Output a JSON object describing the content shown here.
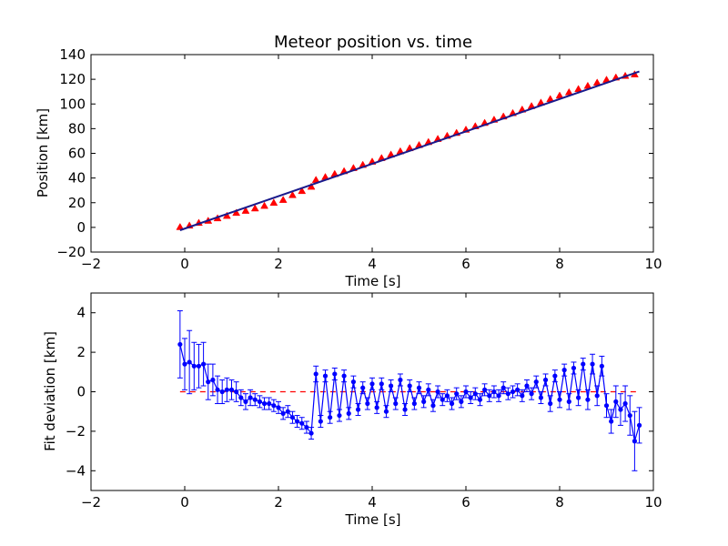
{
  "figure": {
    "title": "Meteor position vs. time"
  },
  "chart_data": [
    {
      "type": "line",
      "title": "Meteor position vs. time",
      "xlabel": "Time [s]",
      "ylabel": "Position [km]",
      "xlim": [
        -2,
        10
      ],
      "ylim": [
        -20,
        140
      ],
      "xticks": [
        -2,
        0,
        2,
        4,
        6,
        8,
        10
      ],
      "yticks": [
        -20,
        0,
        20,
        40,
        60,
        80,
        100,
        120,
        140
      ],
      "xticklabels": [
        "−2",
        "0",
        "2",
        "4",
        "6",
        "8",
        "10"
      ],
      "yticklabels": [
        "−20",
        "0",
        "20",
        "40",
        "60",
        "80",
        "100",
        "120",
        "140"
      ],
      "grid": false,
      "series": [
        {
          "kind": "points",
          "color": "#ff0000",
          "x": [
            -0.1,
            0.1,
            0.3,
            0.5,
            0.7,
            0.9,
            1.1,
            1.3,
            1.5,
            1.7,
            1.9,
            2.1,
            2.3,
            2.5,
            2.7,
            2.8,
            3.0,
            3.2,
            3.4,
            3.6,
            3.8,
            4.0,
            4.2,
            4.4,
            4.6,
            4.8,
            5.0,
            5.2,
            5.4,
            5.6,
            5.8,
            6.0,
            6.2,
            6.4,
            6.6,
            6.8,
            7.0,
            7.2,
            7.4,
            7.6,
            7.8,
            8.0,
            8.2,
            8.4,
            8.6,
            8.8,
            9.0,
            9.2,
            9.4,
            9.6
          ],
          "y": [
            0.3,
            1.5,
            3.7,
            5.4,
            7.4,
            9.4,
            11.8,
            13.5,
            15.4,
            17.5,
            20.0,
            22.3,
            26.2,
            29.5,
            33.0,
            38.5,
            40.8,
            43.3,
            45.6,
            48.1,
            50.7,
            53.3,
            56.2,
            59.0,
            61.7,
            64.2,
            66.7,
            69.2,
            71.7,
            74.2,
            76.6,
            79.2,
            82.0,
            84.7,
            87.3,
            89.9,
            92.6,
            95.5,
            98.3,
            101.1,
            104.0,
            106.8,
            109.5,
            112.1,
            114.7,
            117.3,
            119.6,
            121.5,
            122.8,
            124.0
          ]
        },
        {
          "kind": "fit-line",
          "color": "#1a1a8c",
          "x": [
            -0.1,
            9.7
          ],
          "y": [
            -2.3,
            126.3
          ]
        }
      ]
    },
    {
      "type": "line",
      "xlabel": "Time [s]",
      "ylabel": "Fit deviation [km]",
      "xlim": [
        -2,
        10
      ],
      "ylim": [
        -5,
        5
      ],
      "xticks": [
        -2,
        0,
        2,
        4,
        6,
        8,
        10
      ],
      "yticks": [
        -4,
        -2,
        0,
        2,
        4
      ],
      "xticklabels": [
        "−2",
        "0",
        "2",
        "4",
        "6",
        "8",
        "10"
      ],
      "yticklabels": [
        "−4",
        "−2",
        "0",
        "2",
        "4"
      ],
      "grid": false,
      "zero_line": {
        "y": 0,
        "color": "#ff0000",
        "style": "dashed"
      },
      "series": [
        {
          "kind": "errorbar",
          "color": "#0000ff",
          "x": [
            -0.1,
            0.0,
            0.1,
            0.2,
            0.3,
            0.4,
            0.5,
            0.6,
            0.7,
            0.8,
            0.9,
            1.0,
            1.1,
            1.2,
            1.3,
            1.4,
            1.5,
            1.6,
            1.7,
            1.8,
            1.9,
            2.0,
            2.1,
            2.2,
            2.3,
            2.4,
            2.5,
            2.6,
            2.7,
            2.8,
            2.9,
            3.0,
            3.1,
            3.2,
            3.3,
            3.4,
            3.5,
            3.6,
            3.7,
            3.8,
            3.9,
            4.0,
            4.1,
            4.2,
            4.3,
            4.4,
            4.5,
            4.6,
            4.7,
            4.8,
            4.9,
            5.0,
            5.1,
            5.2,
            5.3,
            5.4,
            5.5,
            5.6,
            5.7,
            5.8,
            5.9,
            6.0,
            6.1,
            6.2,
            6.3,
            6.4,
            6.5,
            6.6,
            6.7,
            6.8,
            6.9,
            7.0,
            7.1,
            7.2,
            7.3,
            7.4,
            7.5,
            7.6,
            7.7,
            7.8,
            7.9,
            8.0,
            8.1,
            8.2,
            8.3,
            8.4,
            8.5,
            8.6,
            8.7,
            8.8,
            8.9,
            9.0,
            9.1,
            9.2,
            9.3,
            9.4,
            9.5,
            9.6,
            9.7
          ],
          "y": [
            2.4,
            1.4,
            1.5,
            1.3,
            1.3,
            1.4,
            0.5,
            0.6,
            0.1,
            0.0,
            0.1,
            0.1,
            0.0,
            -0.3,
            -0.5,
            -0.3,
            -0.4,
            -0.5,
            -0.6,
            -0.6,
            -0.7,
            -0.8,
            -1.1,
            -1.0,
            -1.3,
            -1.5,
            -1.6,
            -1.8,
            -2.1,
            0.9,
            -1.5,
            0.8,
            -1.3,
            0.9,
            -1.2,
            0.8,
            -1.1,
            0.5,
            -0.9,
            0.2,
            -0.6,
            0.4,
            -0.8,
            0.4,
            -1.0,
            0.3,
            -0.6,
            0.6,
            -0.9,
            0.3,
            -0.6,
            0.2,
            -0.5,
            0.1,
            -0.7,
            0.0,
            -0.4,
            -0.2,
            -0.6,
            -0.1,
            -0.5,
            0.0,
            -0.3,
            -0.1,
            -0.4,
            0.1,
            -0.2,
            0.0,
            -0.2,
            0.2,
            -0.1,
            0.0,
            0.1,
            -0.2,
            0.3,
            -0.1,
            0.5,
            -0.3,
            0.6,
            -0.6,
            0.8,
            -0.4,
            1.1,
            -0.5,
            1.2,
            -0.3,
            1.4,
            -0.4,
            1.4,
            -0.2,
            1.3,
            -0.7,
            -1.5,
            -0.5,
            -0.9,
            -0.6,
            -1.2,
            -2.5,
            -1.7
          ],
          "err": [
            1.7,
            1.3,
            1.6,
            1.2,
            1.1,
            1.1,
            0.9,
            0.8,
            0.7,
            0.6,
            0.6,
            0.5,
            0.5,
            0.4,
            0.4,
            0.4,
            0.3,
            0.3,
            0.3,
            0.3,
            0.3,
            0.3,
            0.3,
            0.3,
            0.3,
            0.3,
            0.3,
            0.3,
            0.3,
            0.4,
            0.3,
            0.3,
            0.3,
            0.3,
            0.3,
            0.3,
            0.3,
            0.3,
            0.3,
            0.3,
            0.3,
            0.3,
            0.3,
            0.3,
            0.3,
            0.3,
            0.3,
            0.3,
            0.3,
            0.3,
            0.3,
            0.3,
            0.3,
            0.3,
            0.3,
            0.3,
            0.3,
            0.3,
            0.3,
            0.3,
            0.3,
            0.3,
            0.3,
            0.3,
            0.3,
            0.3,
            0.3,
            0.3,
            0.3,
            0.3,
            0.3,
            0.3,
            0.3,
            0.3,
            0.3,
            0.3,
            0.3,
            0.3,
            0.3,
            0.4,
            0.3,
            0.4,
            0.3,
            0.4,
            0.3,
            0.4,
            0.3,
            0.5,
            0.5,
            0.5,
            0.5,
            0.6,
            0.6,
            0.8,
            0.8,
            0.9,
            1.0,
            1.5,
            0.9
          ]
        }
      ]
    }
  ]
}
